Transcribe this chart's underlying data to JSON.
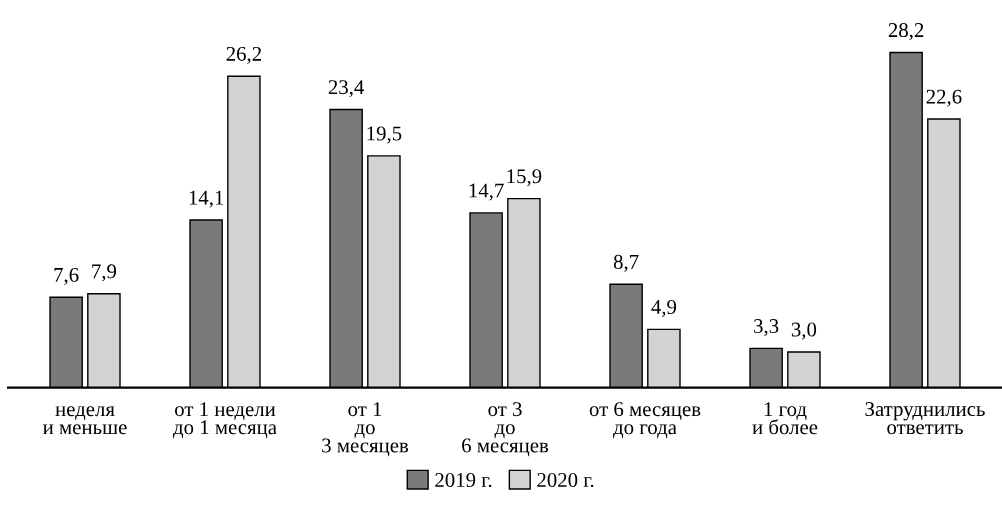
{
  "chart_data": {
    "type": "bar",
    "categories": [
      "неделя\nи меньше",
      "от 1 недели\nдо 1 месяца",
      "от 1\nдо\n3 месяцев",
      "от 3\nдо\n6 месяцев",
      "от 6 месяцев\nдо года",
      "1 год\nи более",
      "Затруднились\nответить"
    ],
    "series": [
      {
        "name": "2019 г.",
        "color": "#7a7a7a",
        "values": [
          7.6,
          14.1,
          23.4,
          14.7,
          8.7,
          3.3,
          28.2
        ],
        "value_labels": [
          "7,6",
          "14,1",
          "23,4",
          "14,7",
          "8,7",
          "3,3",
          "28,2"
        ]
      },
      {
        "name": "2020 г.",
        "color": "#d3d3d3",
        "values": [
          7.9,
          26.2,
          19.5,
          15.9,
          4.9,
          3.0,
          22.6
        ],
        "value_labels": [
          "7,9",
          "26,2",
          "19,5",
          "15,9",
          "4,9",
          "3,0",
          "22,6"
        ]
      }
    ],
    "legend": "bottom",
    "grid": false
  }
}
